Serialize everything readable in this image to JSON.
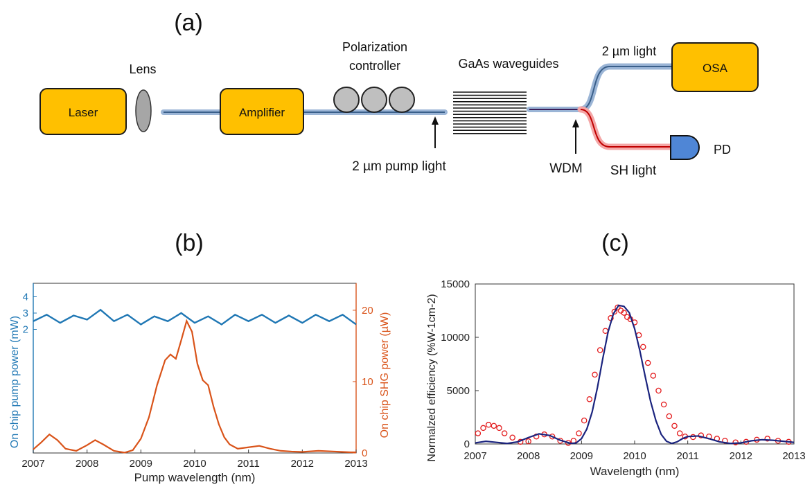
{
  "panels": {
    "a": "(a)",
    "b": "(b)",
    "c": "(c)"
  },
  "setup": {
    "laser": "Laser",
    "lens": "Lens",
    "amplifier": "Amplifier",
    "polarization_line1": "Polarization",
    "polarization_line2": "controller",
    "waveguides": "GaAs waveguides",
    "pump_label": "2 µm pump light",
    "wdm": "WDM",
    "light_2um": "2 µm light",
    "osa": "OSA",
    "sh_light": "SH light",
    "pd": "PD",
    "colors": {
      "box_fill": "#ffc000",
      "box_stroke": "#1a1a1a",
      "fiber": "#9bb5d6",
      "fiber_core": "#3a5f8a",
      "sh_fiber": "#f4a6a6",
      "sh_core": "#c00000",
      "pd_fill": "#4f86d6",
      "lens_fill": "#a6a6a6"
    }
  },
  "chart_data": [
    {
      "id": "b",
      "type": "line",
      "xlabel": "Pump wavelength (nm)",
      "ylabel_left": "On chip pump power (mW)",
      "ylabel_right": "On chip SHG power (µW)",
      "xlim": [
        2007,
        2013
      ],
      "xticks": [
        2007,
        2008,
        2009,
        2010,
        2011,
        2012,
        2013
      ],
      "yticks_left": [
        2,
        3,
        4
      ],
      "yticks_right": [
        0,
        10,
        20
      ],
      "ylim_right": [
        0,
        23
      ],
      "series": [
        {
          "axis": "left",
          "color": "#1f77b4",
          "x": [
            2007.0,
            2007.25,
            2007.5,
            2007.75,
            2008.0,
            2008.25,
            2008.5,
            2008.75,
            2009.0,
            2009.25,
            2009.5,
            2009.75,
            2010.0,
            2010.25,
            2010.5,
            2010.75,
            2011.0,
            2011.25,
            2011.5,
            2011.75,
            2012.0,
            2012.25,
            2012.5,
            2012.75,
            2013.0
          ],
          "y": [
            2.5,
            2.9,
            2.4,
            2.85,
            2.6,
            3.2,
            2.5,
            2.9,
            2.3,
            2.8,
            2.5,
            3.0,
            2.4,
            2.8,
            2.3,
            2.9,
            2.5,
            2.9,
            2.4,
            2.85,
            2.4,
            2.9,
            2.5,
            2.9,
            2.3
          ]
        },
        {
          "axis": "right",
          "color": "#d95319",
          "x": [
            2007.0,
            2007.15,
            2007.3,
            2007.45,
            2007.6,
            2007.8,
            2008.0,
            2008.15,
            2008.3,
            2008.5,
            2008.7,
            2008.85,
            2009.0,
            2009.15,
            2009.3,
            2009.45,
            2009.55,
            2009.65,
            2009.75,
            2009.85,
            2009.95,
            2010.05,
            2010.15,
            2010.25,
            2010.35,
            2010.45,
            2010.55,
            2010.65,
            2010.8,
            2011.0,
            2011.2,
            2011.4,
            2011.6,
            2011.8,
            2012.0,
            2012.3,
            2012.6,
            2012.9,
            2013.0
          ],
          "y": [
            0.5,
            1.5,
            2.6,
            1.8,
            0.6,
            0.3,
            1.1,
            1.8,
            1.2,
            0.3,
            0.05,
            0.4,
            2.0,
            5.0,
            9.5,
            13.0,
            13.8,
            13.2,
            15.8,
            18.5,
            17.0,
            12.5,
            10.2,
            9.5,
            6.5,
            4.0,
            2.2,
            1.2,
            0.6,
            0.8,
            1.0,
            0.6,
            0.3,
            0.2,
            0.15,
            0.3,
            0.2,
            0.1,
            0.1
          ]
        }
      ]
    },
    {
      "id": "c",
      "type": "scatter",
      "xlabel": "Wavelength (nm)",
      "ylabel": "Normalzed efficiency (%W-1cm-2)",
      "xlim": [
        2007,
        2013
      ],
      "ylim": [
        0,
        15000
      ],
      "xticks": [
        2007,
        2008,
        2009,
        2010,
        2011,
        2012,
        2013
      ],
      "yticks": [
        0,
        5000,
        10000,
        15000
      ],
      "series": [
        {
          "kind": "measured",
          "marker": "circle",
          "color": "#e31a1c",
          "x": [
            2007.05,
            2007.15,
            2007.25,
            2007.35,
            2007.45,
            2007.55,
            2007.7,
            2007.85,
            2008.0,
            2008.15,
            2008.3,
            2008.45,
            2008.6,
            2008.75,
            2008.85,
            2008.95,
            2009.05,
            2009.15,
            2009.25,
            2009.35,
            2009.45,
            2009.55,
            2009.62,
            2009.68,
            2009.74,
            2009.8,
            2009.86,
            2009.92,
            2010.0,
            2010.08,
            2010.16,
            2010.25,
            2010.35,
            2010.45,
            2010.55,
            2010.65,
            2010.75,
            2010.85,
            2010.95,
            2011.1,
            2011.25,
            2011.4,
            2011.55,
            2011.7,
            2011.9,
            2012.1,
            2012.3,
            2012.5,
            2012.7,
            2012.9
          ],
          "y": [
            1000,
            1500,
            1800,
            1700,
            1500,
            1000,
            600,
            200,
            250,
            700,
            900,
            700,
            300,
            100,
            300,
            1000,
            2200,
            4200,
            6500,
            8800,
            10600,
            11800,
            12400,
            12800,
            12500,
            12300,
            11900,
            11700,
            11400,
            10200,
            9100,
            7600,
            6400,
            5000,
            3700,
            2600,
            1700,
            1000,
            700,
            650,
            800,
            700,
            500,
            300,
            150,
            200,
            400,
            500,
            300,
            200
          ]
        },
        {
          "kind": "fit",
          "color": "#1a237e",
          "x": [
            2007.0,
            2007.2,
            2007.4,
            2007.6,
            2007.8,
            2008.0,
            2008.2,
            2008.4,
            2008.6,
            2008.8,
            2008.9,
            2009.0,
            2009.1,
            2009.2,
            2009.3,
            2009.4,
            2009.5,
            2009.6,
            2009.7,
            2009.8,
            2009.9,
            2010.0,
            2010.1,
            2010.2,
            2010.3,
            2010.4,
            2010.5,
            2010.6,
            2010.7,
            2010.8,
            2010.9,
            2011.0,
            2011.2,
            2011.4,
            2011.6,
            2011.8,
            2012.0,
            2012.2,
            2012.4,
            2012.6,
            2012.8,
            2013.0
          ],
          "y": [
            100,
            250,
            150,
            50,
            200,
            600,
            950,
            800,
            350,
            50,
            100,
            500,
            1400,
            3000,
            5300,
            8000,
            10500,
            12200,
            13000,
            12900,
            12300,
            10800,
            8700,
            6300,
            4000,
            2200,
            900,
            250,
            50,
            200,
            500,
            700,
            750,
            500,
            200,
            50,
            100,
            300,
            400,
            350,
            250,
            150
          ]
        }
      ]
    }
  ]
}
